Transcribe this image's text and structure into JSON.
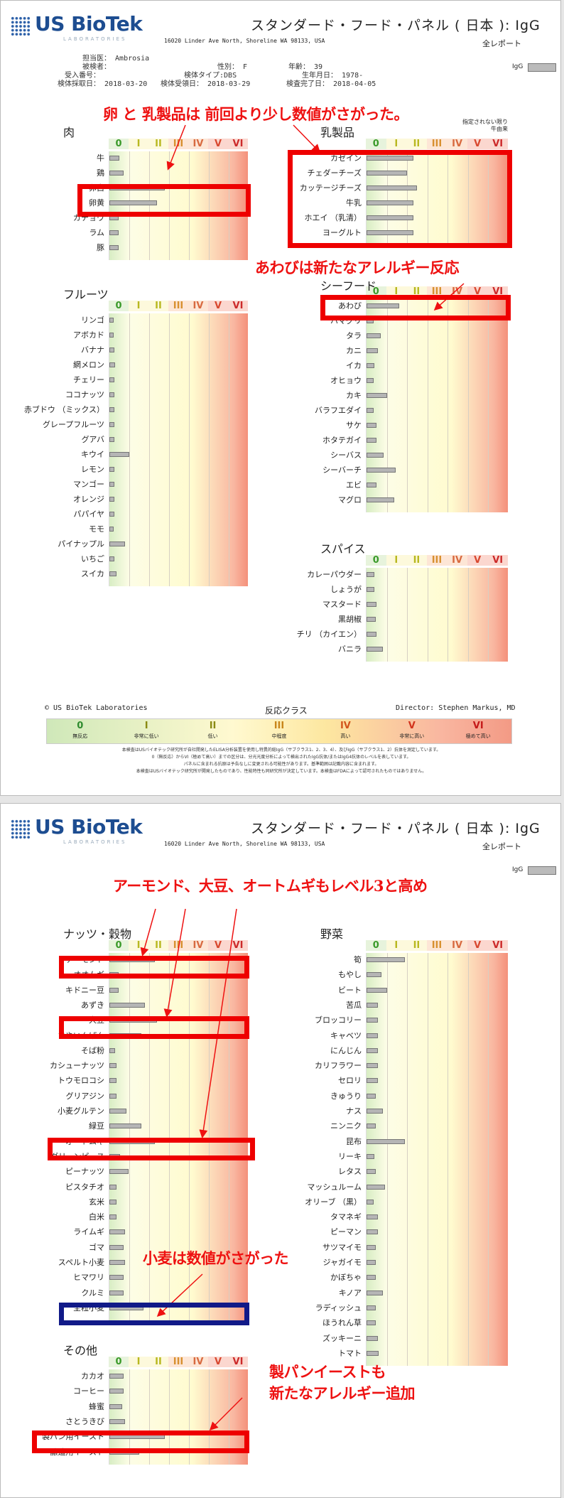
{
  "brand": {
    "name": "US BioTek",
    "sub": "LABORATORIES"
  },
  "report_title": "スタンダード・フード・パネル  ( 日本 ): IgG",
  "address": "16020 Linder Ave North, Shoreline WA 98133, USA",
  "report_type": "全レポート",
  "patient": {
    "doctor_label": "担当医：",
    "doctor": "Ambrosia",
    "subject_label": "被検者：",
    "accession_label": "受入番号：",
    "collected_label": "検体採取日：",
    "collected": "2018-03-20",
    "sex_label": "性別：",
    "sex": "F",
    "age_label": "年齢：",
    "age": "39",
    "type_label": "検体タイプ:",
    "type": "DBS",
    "dob_label": "生年月日：",
    "dob": "1978-",
    "received_label": "検体受領日：",
    "received": "2018-03-29",
    "completed_label": "検査完了日：",
    "completed": "2018-04-05"
  },
  "igg_label": "IgG",
  "scale_headers": [
    "0",
    "I",
    "II",
    "III",
    "IV",
    "V",
    "VI"
  ],
  "colors": {
    "annotation": "#ee1111",
    "box_red": "#ee0000",
    "box_blue": "#111a88",
    "bar": "#b5b5b5",
    "brand": "#1d4d91"
  },
  "page1": {
    "panels": [
      {
        "id": "meat",
        "title": "肉",
        "items": [
          {
            "n": "牛",
            "v": 0.5
          },
          {
            "n": "鶏",
            "v": 0.7
          },
          {
            "n": "卵白",
            "v": 2.8
          },
          {
            "n": "卵黄",
            "v": 2.4
          },
          {
            "n": "ガチョウ",
            "v": 0.45
          },
          {
            "n": "ラム",
            "v": 0.45
          },
          {
            "n": "豚",
            "v": 0.45
          }
        ]
      },
      {
        "id": "dairy",
        "title": "乳製品",
        "note": [
          "指定されない限り",
          "牛由来"
        ],
        "items": [
          {
            "n": "カゼイン",
            "v": 2.3
          },
          {
            "n": "チェダーチーズ",
            "v": 2.0
          },
          {
            "n": "カッテージチーズ",
            "v": 2.5
          },
          {
            "n": "牛乳",
            "v": 2.3
          },
          {
            "n": "ホエイ （乳清）",
            "v": 2.3
          },
          {
            "n": "ヨーグルト",
            "v": 2.3
          }
        ]
      },
      {
        "id": "fruit",
        "title": "フルーツ",
        "items": [
          {
            "n": "リンゴ",
            "v": 0.2
          },
          {
            "n": "アボカド",
            "v": 0.2
          },
          {
            "n": "バナナ",
            "v": 0.25
          },
          {
            "n": "網メロン",
            "v": 0.3
          },
          {
            "n": "チェリー",
            "v": 0.25
          },
          {
            "n": "ココナッツ",
            "v": 0.25
          },
          {
            "n": "赤ブドウ （ミックス）",
            "v": 0.25
          },
          {
            "n": "グレープフルーツ",
            "v": 0.25
          },
          {
            "n": "グアバ",
            "v": 0.25
          },
          {
            "n": "キウイ",
            "v": 1.0
          },
          {
            "n": "レモン",
            "v": 0.25
          },
          {
            "n": "マンゴー",
            "v": 0.25
          },
          {
            "n": "オレンジ",
            "v": 0.25
          },
          {
            "n": "パパイヤ",
            "v": 0.25
          },
          {
            "n": "モモ",
            "v": 0.2
          },
          {
            "n": "パイナップル",
            "v": 0.8
          },
          {
            "n": "いちご",
            "v": 0.25
          },
          {
            "n": "スイカ",
            "v": 0.35
          }
        ]
      },
      {
        "id": "seafood",
        "title": "シーフード",
        "items": [
          {
            "n": "あわび",
            "v": 1.6
          },
          {
            "n": "ハマグリ",
            "v": 0.35
          },
          {
            "n": "タラ",
            "v": 0.7
          },
          {
            "n": "カニ",
            "v": 0.55
          },
          {
            "n": "イカ",
            "v": 0.4
          },
          {
            "n": "オヒョウ",
            "v": 0.35
          },
          {
            "n": "カキ",
            "v": 1.0
          },
          {
            "n": "バラフエダイ",
            "v": 0.35
          },
          {
            "n": "サケ",
            "v": 0.5
          },
          {
            "n": "ホタテガイ",
            "v": 0.5
          },
          {
            "n": "シーバス",
            "v": 0.85
          },
          {
            "n": "シーバーチ",
            "v": 1.45
          },
          {
            "n": "エビ",
            "v": 0.5
          },
          {
            "n": "マグロ",
            "v": 1.35
          }
        ]
      },
      {
        "id": "spice",
        "title": "スパイス",
        "items": [
          {
            "n": "カレーパウダー",
            "v": 0.4
          },
          {
            "n": "しょうが",
            "v": 0.4
          },
          {
            "n": "マスタード",
            "v": 0.5
          },
          {
            "n": "黒胡椒",
            "v": 0.45
          },
          {
            "n": "チリ （カイエン）",
            "v": 0.5
          },
          {
            "n": "バニラ",
            "v": 0.8
          }
        ]
      }
    ],
    "ann1": "卵 と 乳製品は  前回より少し数値がさがった。",
    "ann2": "あわびは新たなアレルギー反応",
    "footer_left": "© US BioTek Laboratories",
    "footer_center": "反応クラス",
    "footer_right": "Director: Stephen Markus, MD",
    "legend": [
      {
        "num": "0",
        "lbl": "無反応",
        "col": "#2e8b2e"
      },
      {
        "num": "I",
        "lbl": "非常に低い",
        "col": "#8a8a12"
      },
      {
        "num": "II",
        "lbl": "低い",
        "col": "#8a8a12"
      },
      {
        "num": "III",
        "lbl": "中程度",
        "col": "#c8861a"
      },
      {
        "num": "IV",
        "lbl": "高い",
        "col": "#d2551c"
      },
      {
        "num": "V",
        "lbl": "非常に高い",
        "col": "#d2331c"
      },
      {
        "num": "VI",
        "lbl": "極めて高い",
        "col": "#c41818"
      }
    ],
    "fine1": "本検査はUSバイオテック研究所が自社開発したELISA分析装置を使用し特異的総IgG（サブクラス1、2、3、4）、及びIgG（サブクラス1、2）抗体を測定しています。",
    "fine2": "0（無反応）からVI（極めて高い）までの区分は、分光光度分析によって検出されたIgG抗体/またはIgG4抗体のレベルを表しています。",
    "fine3": "パネルに含まれる抗原は予告なしに変更される可能性があります。基準範囲は記載内容に含まれます。",
    "fine4": "本検査はUSバイオテック研究所が開発したものであり、性能特性も同研究所が決定しています。本検査はFDAによって認可されたものではありません。"
  },
  "page2": {
    "panels": [
      {
        "id": "nuts",
        "title": "ナッツ・穀物",
        "items": [
          {
            "n": "アーモンド",
            "v": 2.3
          },
          {
            "n": "オオムギ",
            "v": 0.45
          },
          {
            "n": "キドニー豆",
            "v": 0.45
          },
          {
            "n": "あずき",
            "v": 1.8
          },
          {
            "n": "大豆",
            "v": 2.4
          },
          {
            "n": "さやいんげん",
            "v": 1.6
          },
          {
            "n": "そば粉",
            "v": 0.3
          },
          {
            "n": "カシューナッツ",
            "v": 0.35
          },
          {
            "n": "トウモロコシ",
            "v": 0.35
          },
          {
            "n": "グリアジン",
            "v": 0.35
          },
          {
            "n": "小麦グルテン",
            "v": 0.85
          },
          {
            "n": "緑豆",
            "v": 1.6
          },
          {
            "n": "オートムギ",
            "v": 2.3
          },
          {
            "n": "グリーンピース",
            "v": 0.55
          },
          {
            "n": "ピーナッツ",
            "v": 0.95
          },
          {
            "n": "ピスタチオ",
            "v": 0.35
          },
          {
            "n": "玄米",
            "v": 0.35
          },
          {
            "n": "白米",
            "v": 0.35
          },
          {
            "n": "ライムギ",
            "v": 0.8
          },
          {
            "n": "ゴマ",
            "v": 0.7
          },
          {
            "n": "スペルト小麦",
            "v": 0.8
          },
          {
            "n": "ヒマワリ",
            "v": 0.7
          },
          {
            "n": "クルミ",
            "v": 0.7
          },
          {
            "n": "全粒小麦",
            "v": 1.7
          }
        ]
      },
      {
        "id": "veg",
        "title": "野菜",
        "items": [
          {
            "n": "筍",
            "v": 1.9
          },
          {
            "n": "もやし",
            "v": 0.75
          },
          {
            "n": "ビート",
            "v": 1.0
          },
          {
            "n": "苦瓜",
            "v": 0.55
          },
          {
            "n": "ブロッコリー",
            "v": 0.55
          },
          {
            "n": "キャベツ",
            "v": 0.55
          },
          {
            "n": "にんじん",
            "v": 0.55
          },
          {
            "n": "カリフラワー",
            "v": 0.55
          },
          {
            "n": "セロリ",
            "v": 0.55
          },
          {
            "n": "きゅうり",
            "v": 0.45
          },
          {
            "n": "ナス",
            "v": 0.8
          },
          {
            "n": "ニンニク",
            "v": 0.45
          },
          {
            "n": "昆布",
            "v": 1.9
          },
          {
            "n": "リーキ",
            "v": 0.4
          },
          {
            "n": "レタス",
            "v": 0.45
          },
          {
            "n": "マッシュルーム",
            "v": 0.9
          },
          {
            "n": "オリーブ （黒）",
            "v": 0.35
          },
          {
            "n": "タマネギ",
            "v": 0.55
          },
          {
            "n": "ピーマン",
            "v": 0.55
          },
          {
            "n": "サツマイモ",
            "v": 0.45
          },
          {
            "n": "ジャガイモ",
            "v": 0.45
          },
          {
            "n": "かぼちゃ",
            "v": 0.45
          },
          {
            "n": "キノア",
            "v": 0.8
          },
          {
            "n": "ラディッシュ",
            "v": 0.45
          },
          {
            "n": "ほうれん草",
            "v": 0.45
          },
          {
            "n": "ズッキーニ",
            "v": 0.55
          },
          {
            "n": "トマト",
            "v": 0.6
          }
        ]
      },
      {
        "id": "other",
        "title": "その他",
        "items": [
          {
            "n": "カカオ",
            "v": 0.7
          },
          {
            "n": "コーヒー",
            "v": 0.7
          },
          {
            "n": "蜂蜜",
            "v": 0.65
          },
          {
            "n": "さとうきび",
            "v": 0.8
          },
          {
            "n": "製パン用イースト",
            "v": 2.8
          },
          {
            "n": "醸造用イースト",
            "v": 1.5
          }
        ]
      }
    ],
    "ann1": "アーモンド、大豆、オートムギもレベル3と高め",
    "ann2": "小麦は数値がさがった",
    "ann3a": "製パンイーストも",
    "ann3b": "新たなアレルギー追加"
  }
}
